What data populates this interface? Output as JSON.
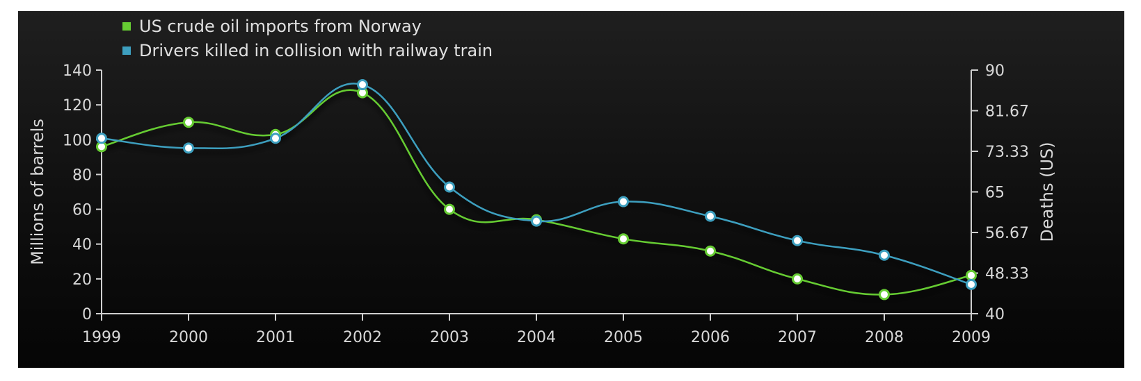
{
  "chart_data": {
    "type": "line",
    "title": "",
    "x": [
      1999,
      2000,
      2001,
      2002,
      2003,
      2004,
      2005,
      2006,
      2007,
      2008,
      2009
    ],
    "xlabel": "",
    "ylabel": "Millions of barrels",
    "ylabel_right": "Deaths (US)",
    "ylim": [
      0,
      140
    ],
    "ylim_right": [
      40,
      90
    ],
    "yticks": [
      "0",
      "20",
      "40",
      "60",
      "80",
      "100",
      "120",
      "140"
    ],
    "yticks_right": [
      "40",
      "48.33",
      "56.67",
      "65",
      "73.33",
      "81.67",
      "90"
    ],
    "grid": false,
    "legend_position": "top-left",
    "series": [
      {
        "name": "US crude oil imports from Norway",
        "axis": "left",
        "color": "#66cc33",
        "values": [
          96,
          110,
          103,
          127,
          60,
          54,
          43,
          36,
          20,
          11,
          22
        ]
      },
      {
        "name": "Drivers killed in collision with railway train",
        "axis": "right",
        "color": "#3d9fbf",
        "values": [
          76,
          74,
          76,
          87,
          66,
          59,
          63,
          60,
          55,
          52,
          46
        ]
      }
    ]
  }
}
